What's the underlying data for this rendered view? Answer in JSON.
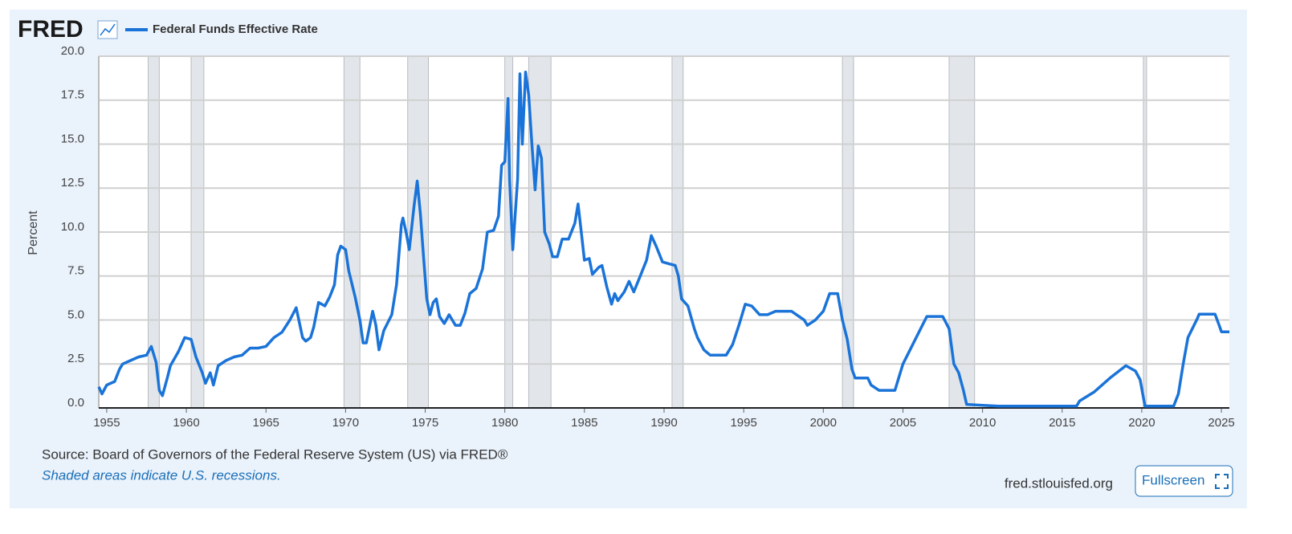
{
  "header": {
    "logo": "FRED",
    "site": "fred.stlouisfed.org",
    "button": "Fullscreen"
  },
  "chart_data": {
    "type": "line",
    "series": [
      {
        "name": "Federal Funds Effective Rate",
        "color": "#1a73d8",
        "x": [
          1954.5,
          1954.7,
          1955,
          1955.5,
          1955.8,
          1956,
          1956.5,
          1957,
          1957.5,
          1957.8,
          1958.1,
          1958.3,
          1958.5,
          1958.8,
          1959,
          1959.5,
          1959.9,
          1960.3,
          1960.6,
          1961,
          1961.2,
          1961.5,
          1961.7,
          1962,
          1962.5,
          1963,
          1963.5,
          1964,
          1964.5,
          1965,
          1965.5,
          1966,
          1966.5,
          1966.9,
          1967.3,
          1967.5,
          1967.8,
          1968,
          1968.3,
          1968.7,
          1969,
          1969.3,
          1969.5,
          1969.7,
          1970,
          1970.2,
          1970.6,
          1970.9,
          1971.1,
          1971.3,
          1971.7,
          1971.9,
          1972.1,
          1972.4,
          1972.9,
          1973.2,
          1973.5,
          1973.6,
          1973.8,
          1974,
          1974.3,
          1974.5,
          1974.7,
          1974.9,
          1975.1,
          1975.3,
          1975.5,
          1975.7,
          1975.9,
          1976.2,
          1976.5,
          1976.9,
          1977.2,
          1977.5,
          1977.8,
          1978.2,
          1978.6,
          1978.9,
          1979.3,
          1979.6,
          1979.8,
          1980,
          1980.2,
          1980.3,
          1980.5,
          1980.8,
          1980.95,
          1981.1,
          1981.3,
          1981.5,
          1981.7,
          1981.9,
          1982.1,
          1982.3,
          1982.5,
          1982.8,
          1983,
          1983.3,
          1983.6,
          1984,
          1984.4,
          1984.6,
          1984.8,
          1985,
          1985.3,
          1985.5,
          1985.9,
          1986.1,
          1986.4,
          1986.7,
          1986.9,
          1987.1,
          1987.5,
          1987.8,
          1988.1,
          1988.5,
          1988.9,
          1989.2,
          1989.5,
          1989.9,
          1990.3,
          1990.7,
          1990.9,
          1991.1,
          1991.5,
          1991.9,
          1992.1,
          1992.5,
          1992.9,
          1993.5,
          1993.9,
          1994.3,
          1994.7,
          1995.1,
          1995.5,
          1996,
          1996.5,
          1997,
          1998,
          1998.8,
          1999,
          1999.5,
          2000,
          2000.4,
          2000.9,
          2001.2,
          2001.5,
          2001.8,
          2002,
          2002.8,
          2003,
          2003.5,
          2004.5,
          2005,
          2006,
          2006.5,
          2007.5,
          2007.9,
          2008.2,
          2008.5,
          2008.8,
          2009,
          2010,
          2011,
          2015.9,
          2016.1,
          2017,
          2018,
          2019,
          2019.6,
          2019.9,
          2020.2,
          2022,
          2022.3,
          2022.6,
          2022.9,
          2023.5,
          2023.6,
          2024.6,
          2024.9,
          2025,
          2025.5
        ],
        "values": [
          1.2,
          0.8,
          1.3,
          1.5,
          2.2,
          2.5,
          2.7,
          2.9,
          3.0,
          3.5,
          2.6,
          1.0,
          0.7,
          1.7,
          2.4,
          3.2,
          4.0,
          3.9,
          2.9,
          2.0,
          1.4,
          2.0,
          1.3,
          2.4,
          2.7,
          2.9,
          3.0,
          3.4,
          3.4,
          3.5,
          4.0,
          4.3,
          5.0,
          5.7,
          4.0,
          3.8,
          4.0,
          4.6,
          6.0,
          5.8,
          6.3,
          7.0,
          8.7,
          9.2,
          9.0,
          7.8,
          6.3,
          5.0,
          3.7,
          3.7,
          5.5,
          4.7,
          3.3,
          4.4,
          5.3,
          7.0,
          10.4,
          10.8,
          10.0,
          9.0,
          11.5,
          12.9,
          11.0,
          8.5,
          6.2,
          5.3,
          6.0,
          6.2,
          5.2,
          4.8,
          5.3,
          4.7,
          4.7,
          5.4,
          6.5,
          6.8,
          7.9,
          10.0,
          10.1,
          10.9,
          13.8,
          14.0,
          17.6,
          13.0,
          9.0,
          13.0,
          19.0,
          15.0,
          19.1,
          17.8,
          15.0,
          12.4,
          14.9,
          14.2,
          10.0,
          9.3,
          8.6,
          8.6,
          9.6,
          9.6,
          10.5,
          11.6,
          10.0,
          8.4,
          8.5,
          7.6,
          8.0,
          8.1,
          6.9,
          5.9,
          6.5,
          6.1,
          6.6,
          7.2,
          6.6,
          7.5,
          8.4,
          9.8,
          9.2,
          8.3,
          8.2,
          8.1,
          7.5,
          6.2,
          5.8,
          4.5,
          4.0,
          3.3,
          3.0,
          3.0,
          3.0,
          3.6,
          4.7,
          5.9,
          5.8,
          5.3,
          5.3,
          5.5,
          5.5,
          5.0,
          4.7,
          5.0,
          5.5,
          6.5,
          6.5,
          5.0,
          3.9,
          2.2,
          1.7,
          1.7,
          1.3,
          1.0,
          1.0,
          2.5,
          4.3,
          5.2,
          5.2,
          4.5,
          2.5,
          2.0,
          1.0,
          0.2,
          0.15,
          0.1,
          0.1,
          0.4,
          0.9,
          1.7,
          2.4,
          2.1,
          1.6,
          0.1,
          0.1,
          0.8,
          2.5,
          4.0,
          5.1,
          5.33,
          5.33,
          4.6,
          4.33,
          4.33
        ]
      }
    ],
    "recessions": [
      [
        1957.6,
        1958.3
      ],
      [
        1960.3,
        1961.1
      ],
      [
        1969.9,
        1970.9
      ],
      [
        1973.9,
        1975.2
      ],
      [
        1980.0,
        1980.5
      ],
      [
        1981.5,
        1982.9
      ],
      [
        1990.5,
        1991.2
      ],
      [
        2001.2,
        2001.9
      ],
      [
        2007.9,
        2009.5
      ],
      [
        2020.1,
        2020.3
      ]
    ],
    "xlim": [
      1954.5,
      2025.5
    ],
    "xticks": [
      1955,
      1960,
      1965,
      1970,
      1975,
      1980,
      1985,
      1990,
      1995,
      2000,
      2005,
      2010,
      2015,
      2020,
      2025
    ],
    "ylim": [
      0,
      20
    ],
    "yticks": [
      {
        "value": 0,
        "label": "0.0"
      },
      {
        "value": 2.5,
        "label": "2.5"
      },
      {
        "value": 5,
        "label": "5.0"
      },
      {
        "value": 7.5,
        "label": "7.5"
      },
      {
        "value": 10,
        "label": "10.0"
      },
      {
        "value": 12.5,
        "label": "12.5"
      },
      {
        "value": 15,
        "label": "15.0"
      },
      {
        "value": 17.5,
        "label": "17.5"
      },
      {
        "value": 20,
        "label": "20.0"
      }
    ],
    "ylabel": "Percent",
    "grid": true,
    "source": "Source: Board of Governors of the Federal Reserve System (US) via FRED®",
    "note": "Shaded areas indicate U.S. recessions."
  }
}
